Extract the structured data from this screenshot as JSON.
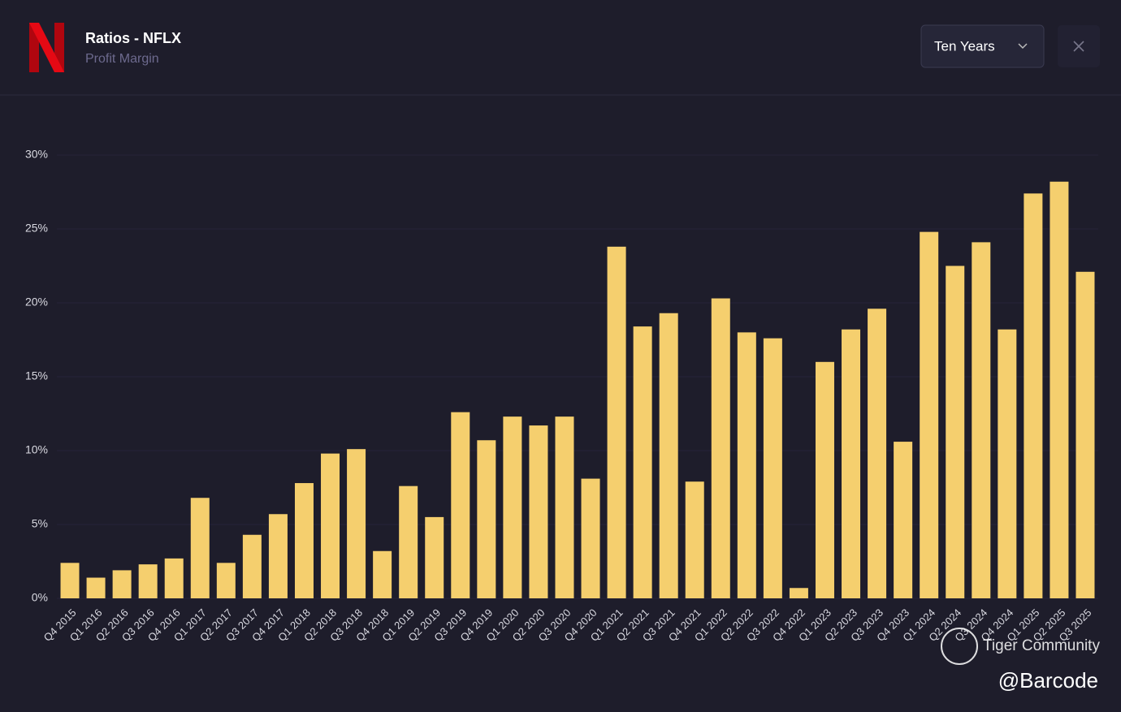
{
  "header": {
    "title": "Ratios - NFLX",
    "subtitle": "Profit Margin",
    "period": "Ten Years"
  },
  "watermarks": {
    "community": "Tiger Community",
    "author": "@Barcode"
  },
  "chart_data": {
    "type": "bar",
    "categories": [
      "Q4 2015",
      "Q1 2016",
      "Q2 2016",
      "Q3 2016",
      "Q4 2016",
      "Q1 2017",
      "Q2 2017",
      "Q3 2017",
      "Q4 2017",
      "Q1 2018",
      "Q2 2018",
      "Q3 2018",
      "Q4 2018",
      "Q1 2019",
      "Q2 2019",
      "Q3 2019",
      "Q4 2019",
      "Q1 2020",
      "Q2 2020",
      "Q3 2020",
      "Q4 2020",
      "Q1 2021",
      "Q2 2021",
      "Q3 2021",
      "Q4 2021",
      "Q1 2022",
      "Q2 2022",
      "Q3 2022",
      "Q4 2022",
      "Q1 2023",
      "Q2 2023",
      "Q3 2023",
      "Q4 2023",
      "Q1 2024",
      "Q2 2024",
      "Q3 2024",
      "Q4 2024",
      "Q1 2025",
      "Q2 2025",
      "Q3 2025"
    ],
    "values": [
      2.4,
      1.4,
      1.9,
      2.3,
      2.7,
      6.8,
      2.4,
      4.3,
      5.7,
      7.8,
      9.8,
      10.1,
      3.2,
      7.6,
      5.5,
      12.6,
      10.7,
      12.3,
      11.7,
      12.3,
      8.1,
      23.8,
      18.4,
      19.3,
      7.9,
      20.3,
      18.0,
      17.6,
      0.7,
      16.0,
      18.2,
      19.6,
      10.6,
      24.8,
      22.5,
      24.1,
      18.2,
      27.4,
      28.2,
      22.1
    ],
    "color": "#f5cf6e",
    "ylim": [
      0,
      30
    ],
    "yticks": [
      {
        "value": 0,
        "label": "0%"
      },
      {
        "value": 5,
        "label": "5%"
      },
      {
        "value": 10,
        "label": "10%"
      },
      {
        "value": 15,
        "label": "15%"
      },
      {
        "value": 20,
        "label": "20%"
      },
      {
        "value": 25,
        "label": "25%"
      },
      {
        "value": 30,
        "label": "30%"
      }
    ],
    "grid": true
  }
}
